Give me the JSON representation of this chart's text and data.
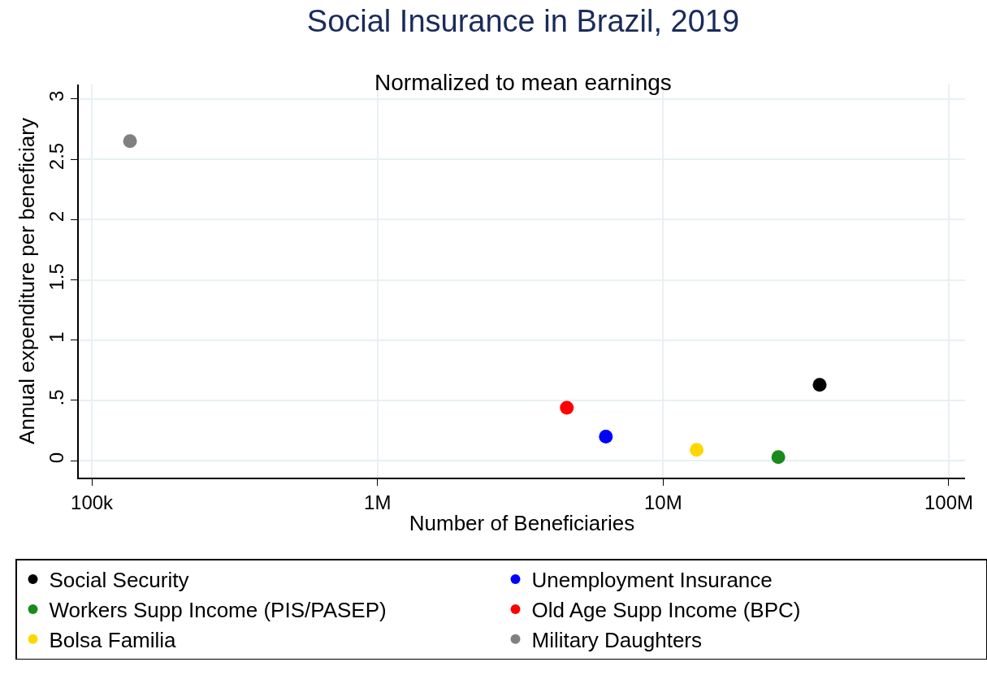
{
  "chart_data": {
    "type": "scatter",
    "title": "Social Insurance in Brazil, 2019",
    "subtitle": "Normalized to mean earnings",
    "xlabel": "Number of Beneficiaries",
    "ylabel": "Annual expenditure per beneficiary",
    "series": [
      {
        "name": "Social Security",
        "color": "#000000",
        "x": [
          35300000
        ],
        "values": [
          0.63
        ]
      },
      {
        "name": "Unemployment Insurance",
        "color": "#0000ff",
        "x": [
          6300000
        ],
        "values": [
          0.2
        ]
      },
      {
        "name": "Workers Supp Income (PIS/PASEP)",
        "color": "#1a8a1a",
        "x": [
          25300000
        ],
        "values": [
          0.03
        ]
      },
      {
        "name": "Old Age Supp Income (BPC)",
        "color": "#ff0000",
        "x": [
          4600000
        ],
        "values": [
          0.44
        ]
      },
      {
        "name": "Bolsa Familia",
        "color": "#ffd700",
        "x": [
          13100000
        ],
        "values": [
          0.09
        ]
      },
      {
        "name": "Military Daughters",
        "color": "#808080",
        "x": [
          136000
        ],
        "values": [
          2.65
        ]
      }
    ],
    "log": "x",
    "xlim": [
      90000,
      114000000
    ],
    "xticks": [
      {
        "value": 100000,
        "label": "100k"
      },
      {
        "value": 1000000,
        "label": "1M"
      },
      {
        "value": 10000000,
        "label": "10M"
      },
      {
        "value": 100000000,
        "label": "100M"
      }
    ],
    "ylim": [
      -0.14,
      3.12
    ],
    "yticks": [
      0,
      {
        "value": 0.5,
        "label": ".5"
      },
      1,
      1.5,
      2,
      2.5,
      3
    ],
    "grid": true,
    "legend": "bottom",
    "marker": "circle"
  }
}
